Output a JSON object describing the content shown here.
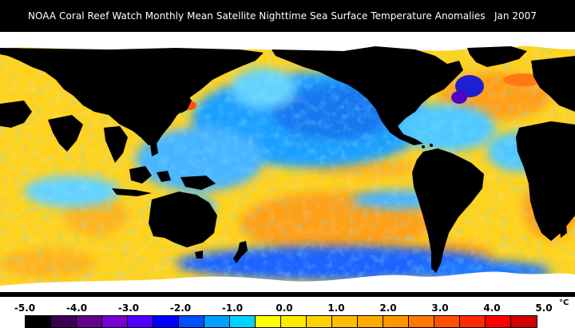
{
  "header": {
    "title": "NOAA Coral Reef Watch Monthly Mean Satellite Nighttime Sea Surface Temperature Anomalies",
    "date": "Jan 2007"
  },
  "legend": {
    "ticks": [
      "-5.0",
      "-4.0",
      "-3.0",
      "-2.0",
      "-1.0",
      "0.0",
      "1.0",
      "2.0",
      "3.0",
      "4.0",
      "5.0"
    ],
    "unit": "°C",
    "colors": [
      "#000000",
      "#3c0050",
      "#64008c",
      "#7800d2",
      "#5000ff",
      "#0000ff",
      "#0050ff",
      "#00a0ff",
      "#00d2ff",
      "#ffff00",
      "#ffeb00",
      "#ffd200",
      "#ffbe00",
      "#ffaa00",
      "#ff9600",
      "#ff7800",
      "#ff5000",
      "#ff2800",
      "#ff0000",
      "#d20000"
    ]
  },
  "map": {
    "ocean_colors": {
      "warm_anomaly": "#ffd21e",
      "strong_warm_anomaly": "#ffa014",
      "cold_anomaly": "#1ea0ff",
      "strong_cold_anomaly": "#1450e6",
      "neutral": "#50d2ff",
      "land": "#000000",
      "ice": "#ffffff"
    }
  }
}
